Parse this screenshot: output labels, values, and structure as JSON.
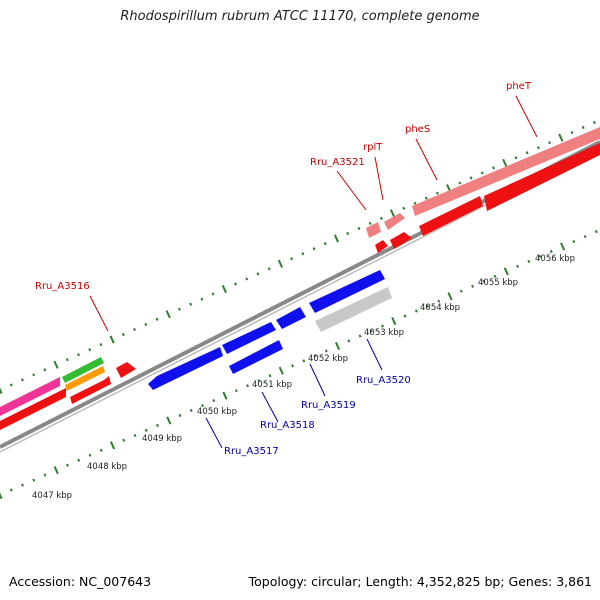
{
  "title": "Rhodospirillum rubrum ATCC 11170, complete genome",
  "footer": {
    "accession": "Accession: NC_007643",
    "topology": "Topology: circular; Length: 4,352,825 bp; Genes: 3,861"
  },
  "colors": {
    "backbone": "#777777",
    "tick": "#2e7d2e",
    "forward_label": "#cc0000",
    "reverse_label": "#0000aa",
    "forward_gene": "#ee1111",
    "forward_light": "#f08080",
    "reverse_gene": "#1010ee",
    "reverse_grey": "#c8c8c8",
    "pink": "#ee3399",
    "green": "#33bb33",
    "orange": "#ff9900"
  },
  "kbp_labels": [
    "4047 kbp",
    "4048 kbp",
    "4049 kbp",
    "4050 kbp",
    "4051 kbp",
    "4052 kbp",
    "4053 kbp",
    "4054 kbp",
    "4055 kbp",
    "4056 kbp"
  ],
  "forward_gene_labels": [
    "Rru_A3516",
    "Rru_A3521",
    "rplT",
    "pheS",
    "pheT"
  ],
  "reverse_gene_labels": [
    "Rru_A3517",
    "Rru_A3518",
    "Rru_A3519",
    "Rru_A3520"
  ]
}
